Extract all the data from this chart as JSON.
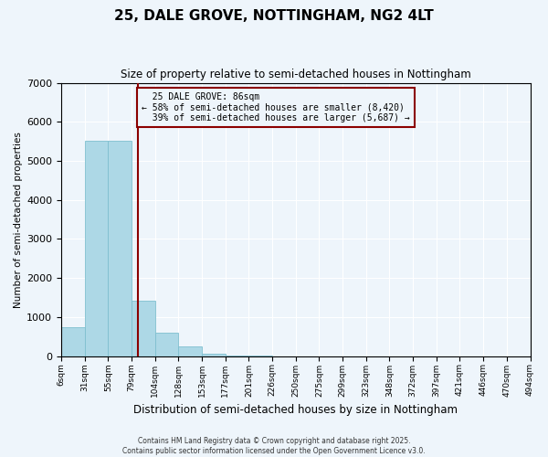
{
  "title": "25, DALE GROVE, NOTTINGHAM, NG2 4LT",
  "subtitle": "Size of property relative to semi-detached houses in Nottingham",
  "xlabel": "Distribution of semi-detached houses by size in Nottingham",
  "ylabel": "Number of semi-detached properties",
  "property_size": 86,
  "property_label": "25 DALE GROVE: 86sqm",
  "pct_smaller": 58,
  "count_smaller": 8420,
  "pct_larger": 39,
  "count_larger": 5687,
  "bar_color": "#add8e6",
  "bar_edge_color": "#7fbfcf",
  "vline_color": "#8b0000",
  "annotation_box_color": "#8b0000",
  "background_color": "#eef5fb",
  "grid_color": "#ffffff",
  "footer": "Contains HM Land Registry data © Crown copyright and database right 2025.\nContains public sector information licensed under the Open Government Licence v3.0.",
  "bin_labels": [
    "6sqm",
    "31sqm",
    "55sqm",
    "79sqm",
    "104sqm",
    "128sqm",
    "153sqm",
    "177sqm",
    "201sqm",
    "226sqm",
    "250sqm",
    "275sqm",
    "299sqm",
    "323sqm",
    "348sqm",
    "372sqm",
    "397sqm",
    "421sqm",
    "446sqm",
    "470sqm",
    "494sqm"
  ],
  "bin_counts": [
    750,
    5520,
    5520,
    1430,
    600,
    260,
    70,
    20,
    8,
    0,
    0,
    0,
    0,
    0,
    0,
    0,
    0,
    0,
    0,
    0
  ],
  "property_bin_index": 3,
  "ylim": [
    0,
    7000
  ],
  "num_bins": 20
}
